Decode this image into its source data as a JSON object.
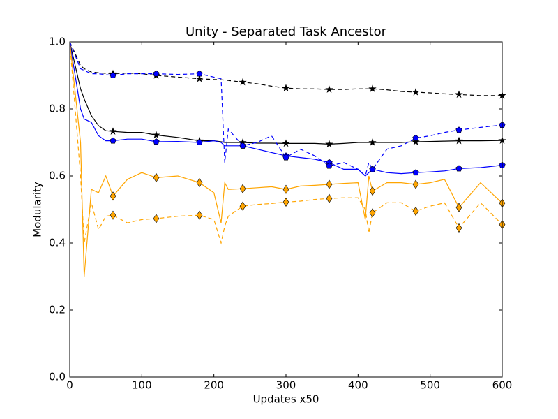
{
  "chart_data": {
    "type": "line",
    "title": "Unity - Separated Task Ancestor",
    "x_label": "Updates x50",
    "y_label": "Modularity",
    "xlim": [
      0,
      600
    ],
    "ylim": [
      0,
      1
    ],
    "xticks": [
      0,
      100,
      200,
      300,
      400,
      500,
      600
    ],
    "yticks": [
      {
        "value": 0,
        "label": "0.0"
      },
      0.2,
      0.4,
      0.6,
      0.8,
      {
        "value": 1,
        "label": "1.0"
      }
    ],
    "marker_every": 60,
    "x": [
      0,
      15,
      20,
      30,
      40,
      50,
      60,
      80,
      100,
      120,
      150,
      180,
      200,
      210,
      215,
      220,
      240,
      260,
      280,
      300,
      320,
      340,
      360,
      380,
      400,
      410,
      415,
      420,
      440,
      460,
      480,
      500,
      520,
      540,
      570,
      600
    ],
    "series": [
      {
        "color": "#000000",
        "linestyle": "solid",
        "marker": "star",
        "values": [
          1.0,
          0.86,
          0.83,
          0.78,
          0.75,
          0.735,
          0.733,
          0.73,
          0.73,
          0.722,
          0.715,
          0.705,
          0.705,
          0.702,
          0.7,
          0.7,
          0.7,
          0.698,
          0.698,
          0.697,
          0.697,
          0.697,
          0.695,
          0.697,
          0.7,
          0.7,
          0.7,
          0.7,
          0.7,
          0.7,
          0.702,
          0.703,
          0.704,
          0.705,
          0.705,
          0.706
        ]
      },
      {
        "color": "#000000",
        "linestyle": "dashed",
        "marker": "star",
        "values": [
          1.0,
          0.93,
          0.92,
          0.91,
          0.908,
          0.906,
          0.905,
          0.907,
          0.905,
          0.9,
          0.895,
          0.89,
          0.888,
          0.887,
          0.886,
          0.885,
          0.88,
          0.875,
          0.868,
          0.862,
          0.86,
          0.86,
          0.858,
          0.858,
          0.86,
          0.86,
          0.86,
          0.86,
          0.857,
          0.852,
          0.85,
          0.848,
          0.845,
          0.843,
          0.84,
          0.84
        ]
      },
      {
        "color": "#0000ff",
        "linestyle": "solid",
        "marker": "pentagon",
        "values": [
          1.0,
          0.8,
          0.77,
          0.76,
          0.72,
          0.705,
          0.705,
          0.71,
          0.71,
          0.702,
          0.703,
          0.7,
          0.705,
          0.7,
          0.69,
          0.69,
          0.69,
          0.68,
          0.67,
          0.66,
          0.655,
          0.65,
          0.64,
          0.62,
          0.62,
          0.6,
          0.61,
          0.62,
          0.61,
          0.607,
          0.61,
          0.612,
          0.615,
          0.622,
          0.625,
          0.632
        ]
      },
      {
        "color": "#0000ff",
        "linestyle": "dashed",
        "marker": "pentagon",
        "values": [
          1.0,
          0.92,
          0.915,
          0.905,
          0.905,
          0.902,
          0.9,
          0.905,
          0.905,
          0.905,
          0.903,
          0.905,
          0.895,
          0.89,
          0.64,
          0.74,
          0.69,
          0.7,
          0.72,
          0.655,
          0.68,
          0.66,
          0.63,
          0.64,
          0.62,
          0.6,
          0.64,
          0.62,
          0.68,
          0.69,
          0.713,
          0.72,
          0.73,
          0.737,
          0.745,
          0.752
        ]
      },
      {
        "color": "#ffa500",
        "linestyle": "solid",
        "marker": "diamond",
        "values": [
          1.0,
          0.7,
          0.3,
          0.56,
          0.55,
          0.6,
          0.54,
          0.59,
          0.61,
          0.595,
          0.6,
          0.58,
          0.55,
          0.46,
          0.58,
          0.56,
          0.562,
          0.565,
          0.568,
          0.56,
          0.57,
          0.572,
          0.575,
          0.578,
          0.58,
          0.47,
          0.6,
          0.555,
          0.58,
          0.58,
          0.575,
          0.58,
          0.59,
          0.506,
          0.58,
          0.519
        ]
      },
      {
        "color": "#ffa500",
        "linestyle": "dashed",
        "marker": "diamond",
        "values": [
          1.0,
          0.6,
          0.4,
          0.52,
          0.44,
          0.48,
          0.483,
          0.46,
          0.47,
          0.473,
          0.48,
          0.483,
          0.47,
          0.4,
          0.45,
          0.48,
          0.51,
          0.515,
          0.518,
          0.522,
          0.525,
          0.53,
          0.533,
          0.535,
          0.535,
          0.5,
          0.43,
          0.49,
          0.52,
          0.52,
          0.495,
          0.51,
          0.52,
          0.445,
          0.52,
          0.455
        ]
      }
    ]
  }
}
